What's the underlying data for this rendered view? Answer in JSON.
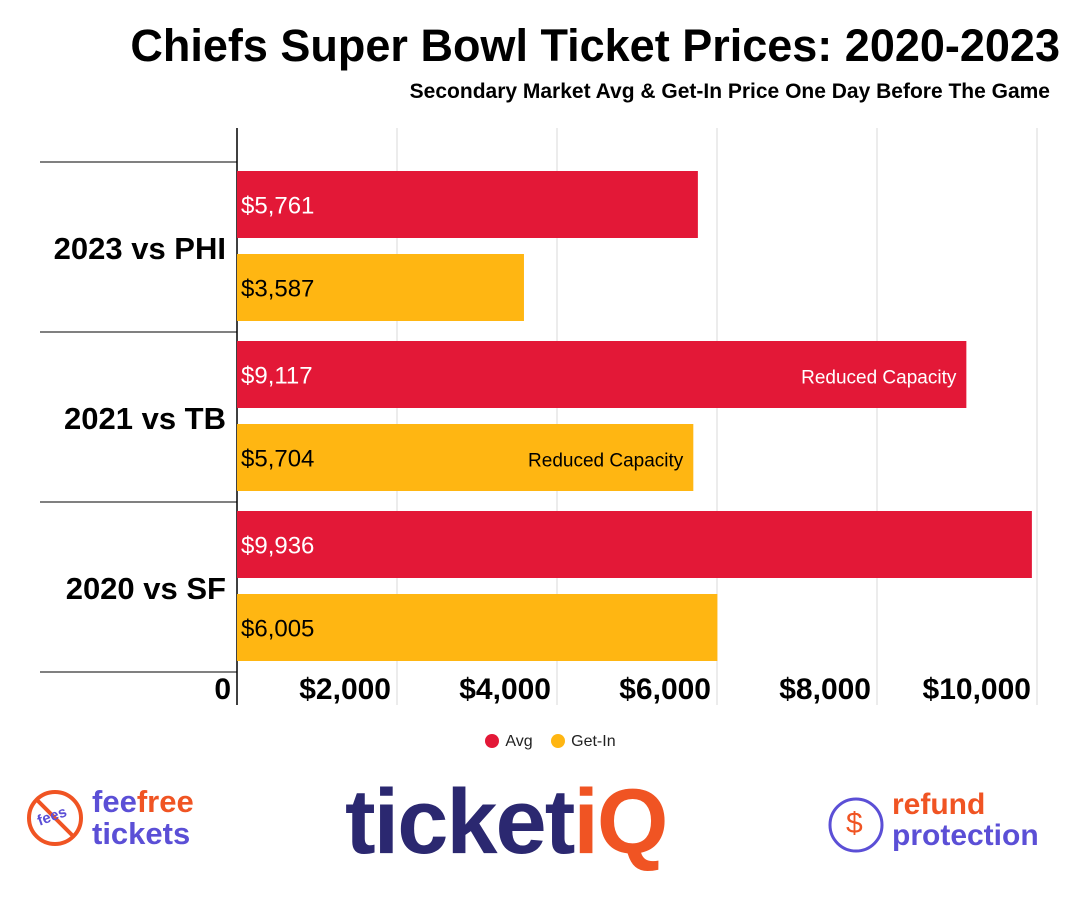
{
  "chart_data": {
    "type": "bar",
    "orientation": "horizontal",
    "title": "Chiefs Super Bowl Ticket Prices: 2020-2023",
    "subtitle": "Secondary Market Avg & Get-In Price One Day Before The Game",
    "categories": [
      "2023 vs PHI",
      "2021 vs TB",
      "2020 vs SF"
    ],
    "series": [
      {
        "name": "Avg",
        "color": "#E31837",
        "values": [
          5761,
          9117,
          9936
        ],
        "labels": [
          "$5,761",
          "$9,117",
          "$9,936"
        ],
        "annotations": [
          "",
          "Reduced Capacity",
          ""
        ]
      },
      {
        "name": "Get-In",
        "color": "#FFB612",
        "values": [
          3587,
          5704,
          6005
        ],
        "labels": [
          "$3,587",
          "$5,704",
          "$6,005"
        ],
        "annotations": [
          "",
          "Reduced Capacity",
          ""
        ]
      }
    ],
    "xlim": [
      0,
      10000
    ],
    "xticks": [
      0,
      2000,
      4000,
      6000,
      8000,
      10000
    ],
    "xtick_labels": [
      "0",
      "$2,000",
      "$4,000",
      "$6,000",
      "$8,000",
      "$10,000"
    ],
    "grid": true,
    "legend_position": "bottom"
  },
  "logos": {
    "left": {
      "text1": "fee",
      "text2": "free",
      "text3": "tickets",
      "badge": "fees"
    },
    "center": {
      "text1": "ticket",
      "text2": "iQ"
    },
    "right": {
      "text1": "refund",
      "text2": "protection",
      "symbol": "$"
    }
  }
}
